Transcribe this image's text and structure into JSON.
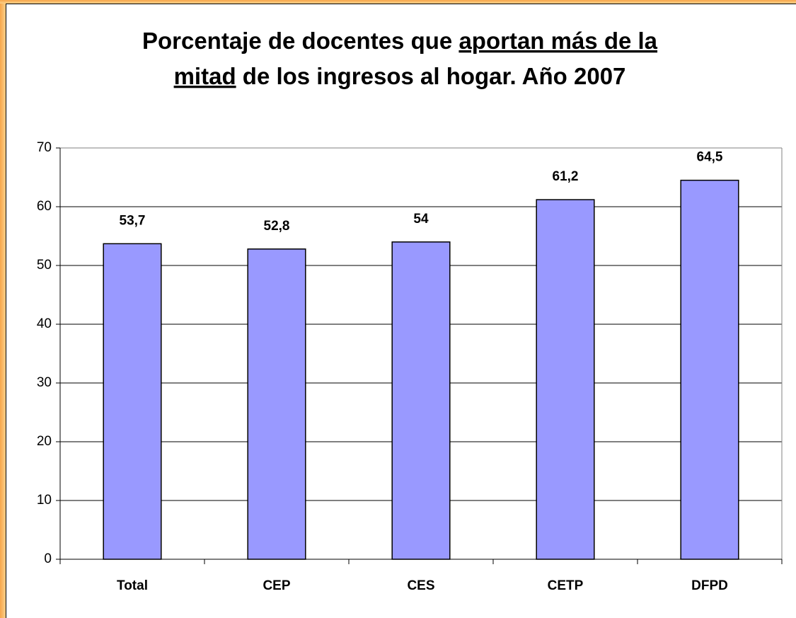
{
  "chart_data": {
    "type": "bar",
    "title_lines": [
      [
        {
          "text": "Porcentaje de docentes que",
          "underline": false
        },
        {
          "text": "aportan más de la",
          "underline": true
        }
      ],
      [
        {
          "text": "mitad",
          "underline": true
        },
        {
          "text": "de los ingresos al hogar. Año 2007",
          "underline": false
        }
      ]
    ],
    "categories": [
      "Total",
      "CEP",
      "CES",
      "CETP",
      "DFPD"
    ],
    "values": [
      53.7,
      52.8,
      54,
      61.2,
      64.5
    ],
    "value_labels": [
      "53,7",
      "52,8",
      "54",
      "61,2",
      "64,5"
    ],
    "color": "#9999ff",
    "ylim": [
      0,
      70
    ],
    "yticks": [
      0,
      10,
      20,
      30,
      40,
      50,
      60,
      70
    ],
    "grid": true
  }
}
